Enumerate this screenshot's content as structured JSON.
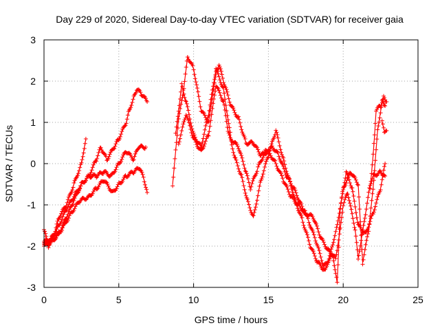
{
  "chart_data": {
    "type": "scatter",
    "title": "Day 229 of 2020, Sidereal Day-to-day VTEC variation (SDTVAR) for receiver gaia",
    "xlabel": "GPS time / hours",
    "ylabel": "SDTVAR / TECUs",
    "xlim": [
      0,
      25
    ],
    "ylim": [
      -3,
      3
    ],
    "xticks": [
      0,
      5,
      10,
      15,
      20,
      25
    ],
    "yticks": [
      -3,
      -2,
      -1,
      0,
      1,
      2,
      3
    ],
    "grid": true,
    "marker": "plus",
    "color": "#ff0000",
    "series": [
      {
        "name": "s1",
        "points": [
          [
            0,
            -1.6
          ],
          [
            0.3,
            -2.0
          ],
          [
            0.7,
            -1.7
          ],
          [
            1.0,
            -1.3
          ],
          [
            1.5,
            -1.0
          ],
          [
            2.0,
            -0.5
          ],
          [
            2.5,
            0.0
          ],
          [
            2.8,
            0.6
          ]
        ]
      },
      {
        "name": "s2",
        "points": [
          [
            0,
            -1.9
          ],
          [
            0.5,
            -1.8
          ],
          [
            1.0,
            -1.5
          ],
          [
            1.5,
            -1.1
          ],
          [
            2.0,
            -0.8
          ],
          [
            2.5,
            -0.5
          ],
          [
            3.0,
            -0.3
          ],
          [
            3.5,
            0.1
          ],
          [
            3.8,
            0.4
          ],
          [
            4.2,
            0.1
          ],
          [
            4.7,
            0.4
          ],
          [
            5.0,
            0.6
          ],
          [
            5.5,
            1.0
          ],
          [
            5.7,
            1.3
          ],
          [
            6.0,
            1.6
          ],
          [
            6.2,
            1.8
          ],
          [
            6.5,
            1.7
          ],
          [
            6.9,
            1.5
          ]
        ]
      },
      {
        "name": "s3",
        "points": [
          [
            0,
            -2.0
          ],
          [
            0.5,
            -1.9
          ],
          [
            1.0,
            -1.7
          ],
          [
            1.5,
            -1.3
          ],
          [
            2.0,
            -0.9
          ],
          [
            2.5,
            -0.5
          ],
          [
            3.0,
            -0.3
          ],
          [
            3.5,
            -0.3
          ],
          [
            4.0,
            -0.2
          ],
          [
            4.5,
            -0.3
          ],
          [
            5.0,
            0.0
          ],
          [
            5.5,
            0.3
          ],
          [
            6.0,
            0.1
          ],
          [
            6.3,
            0.4
          ],
          [
            6.8,
            0.4
          ]
        ]
      },
      {
        "name": "s4",
        "points": [
          [
            0,
            -1.95
          ],
          [
            0.6,
            -1.85
          ],
          [
            1.2,
            -1.6
          ],
          [
            1.8,
            -1.2
          ],
          [
            2.4,
            -0.9
          ],
          [
            3.0,
            -0.8
          ],
          [
            3.5,
            -0.6
          ],
          [
            4.0,
            -0.4
          ],
          [
            4.6,
            -0.7
          ],
          [
            5.0,
            -0.5
          ],
          [
            5.5,
            -0.3
          ],
          [
            6.0,
            -0.2
          ],
          [
            6.4,
            -0.1
          ],
          [
            6.7,
            -0.4
          ],
          [
            6.9,
            -0.7
          ]
        ]
      },
      {
        "name": "s5",
        "points": [
          [
            8.6,
            -0.5
          ],
          [
            8.8,
            0.3
          ],
          [
            9.0,
            1.1
          ],
          [
            9.3,
            1.7
          ],
          [
            9.6,
            2.6
          ],
          [
            10.0,
            2.3
          ],
          [
            10.5,
            1.3
          ],
          [
            11.0,
            1.0
          ],
          [
            11.5,
            2.2
          ],
          [
            11.7,
            2.4
          ],
          [
            12.0,
            2.0
          ],
          [
            12.5,
            1.4
          ],
          [
            13.0,
            1.1
          ],
          [
            13.5,
            0.5
          ],
          [
            14.0,
            0.5
          ],
          [
            14.5,
            0.2
          ],
          [
            15.0,
            0.3
          ],
          [
            15.5,
            0.0
          ],
          [
            16.0,
            -0.4
          ],
          [
            16.5,
            -0.8
          ],
          [
            17.0,
            -1.0
          ],
          [
            17.5,
            -1.2
          ],
          [
            18.0,
            -1.3
          ],
          [
            18.5,
            -1.8
          ],
          [
            19.0,
            -2.1
          ],
          [
            19.5,
            -2.3
          ],
          [
            19.8,
            -1.6
          ],
          [
            20.0,
            -1.0
          ],
          [
            20.3,
            -0.7
          ],
          [
            20.8,
            -1.6
          ],
          [
            21.0,
            -2.3
          ],
          [
            21.5,
            -1.2
          ],
          [
            21.8,
            -0.5
          ],
          [
            22.0,
            -0.3
          ],
          [
            22.5,
            -0.2
          ],
          [
            22.8,
            -0.3
          ]
        ]
      },
      {
        "name": "s6",
        "points": [
          [
            8.8,
            0.7
          ],
          [
            9.2,
            1.9
          ],
          [
            9.5,
            1.5
          ],
          [
            10.0,
            0.7
          ],
          [
            10.5,
            0.4
          ],
          [
            11.0,
            1.2
          ],
          [
            11.5,
            2.3
          ],
          [
            12.0,
            1.8
          ],
          [
            12.5,
            0.6
          ],
          [
            13.0,
            0.4
          ],
          [
            13.5,
            -0.2
          ],
          [
            13.8,
            -0.6
          ],
          [
            14.3,
            -0.1
          ],
          [
            14.8,
            0.3
          ],
          [
            15.3,
            0.4
          ],
          [
            15.7,
            0.2
          ],
          [
            16.2,
            -0.3
          ],
          [
            16.7,
            -0.6
          ],
          [
            17.2,
            -1.0
          ],
          [
            17.7,
            -1.4
          ],
          [
            18.2,
            -1.9
          ],
          [
            18.7,
            -2.5
          ],
          [
            19.3,
            -2.2
          ],
          [
            19.6,
            -2.9
          ],
          [
            19.8,
            -1.1
          ],
          [
            20.2,
            -0.2
          ],
          [
            20.6,
            -0.6
          ],
          [
            21.0,
            -1.5
          ],
          [
            21.5,
            -1.7
          ],
          [
            22.0,
            -1.2
          ],
          [
            22.5,
            -0.6
          ],
          [
            22.8,
            0.0
          ]
        ]
      },
      {
        "name": "s7",
        "points": [
          [
            9.0,
            0.5
          ],
          [
            9.5,
            1.2
          ],
          [
            10.0,
            0.6
          ],
          [
            10.5,
            0.3
          ],
          [
            11.0,
            0.7
          ],
          [
            11.5,
            1.9
          ],
          [
            12.0,
            1.5
          ],
          [
            12.3,
            0.8
          ],
          [
            12.8,
            0.1
          ],
          [
            13.2,
            -0.3
          ],
          [
            13.6,
            -0.9
          ],
          [
            14.0,
            -1.3
          ],
          [
            14.5,
            -0.4
          ],
          [
            15.0,
            0.2
          ],
          [
            15.5,
            0.8
          ],
          [
            16.0,
            0.1
          ],
          [
            16.4,
            -0.4
          ],
          [
            16.8,
            -0.9
          ],
          [
            17.3,
            -1.4
          ],
          [
            17.8,
            -2.0
          ],
          [
            18.3,
            -2.4
          ],
          [
            18.8,
            -2.6
          ],
          [
            19.2,
            -2.1
          ],
          [
            19.6,
            -1.5
          ],
          [
            20.0,
            -0.6
          ],
          [
            20.5,
            -0.2
          ],
          [
            21.0,
            -0.5
          ],
          [
            21.3,
            -2.4
          ],
          [
            21.7,
            -1.6
          ],
          [
            22.0,
            -0.6
          ],
          [
            22.3,
            0.8
          ],
          [
            22.6,
            1.5
          ],
          [
            22.8,
            1.4
          ]
        ]
      },
      {
        "name": "s8",
        "points": [
          [
            21.8,
            -0.6
          ],
          [
            22.0,
            0.2
          ],
          [
            22.1,
            0.7
          ],
          [
            22.2,
            1.3
          ],
          [
            22.5,
            1.4
          ],
          [
            22.7,
            1.6
          ],
          [
            22.9,
            1.5
          ]
        ]
      },
      {
        "name": "s9",
        "points": [
          [
            22.6,
            1.0
          ],
          [
            22.75,
            0.8
          ],
          [
            22.9,
            0.8
          ]
        ]
      }
    ]
  }
}
